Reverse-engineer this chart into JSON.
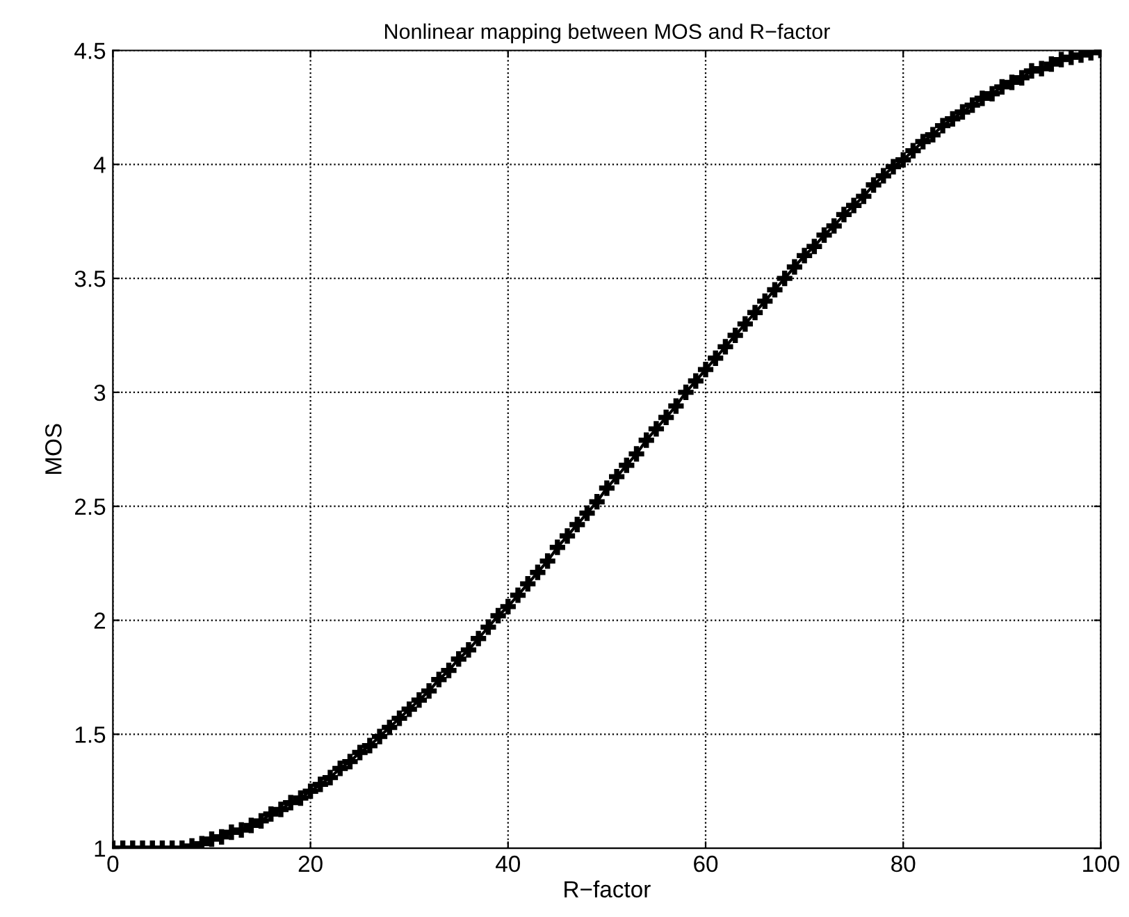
{
  "chart_data": {
    "type": "line",
    "title": "Nonlinear mapping between MOS and R−factor",
    "xlabel": "R−factor",
    "ylabel": "MOS",
    "x": [
      0,
      1,
      2,
      3,
      4,
      5,
      6,
      7,
      8,
      9,
      10,
      11,
      12,
      13,
      14,
      15,
      16,
      17,
      18,
      19,
      20,
      21,
      22,
      23,
      24,
      25,
      26,
      27,
      28,
      29,
      30,
      31,
      32,
      33,
      34,
      35,
      36,
      37,
      38,
      39,
      40,
      41,
      42,
      43,
      44,
      45,
      46,
      47,
      48,
      49,
      50,
      51,
      52,
      53,
      54,
      55,
      56,
      57,
      58,
      59,
      60,
      61,
      62,
      63,
      64,
      65,
      66,
      67,
      68,
      69,
      70,
      71,
      72,
      73,
      74,
      75,
      76,
      77,
      78,
      79,
      80,
      81,
      82,
      83,
      84,
      85,
      86,
      87,
      88,
      89,
      90,
      91,
      92,
      93,
      94,
      95,
      96,
      97,
      98,
      99,
      100
    ],
    "series": [
      {
        "color": "#000000",
        "values": [
          1,
          1,
          1,
          1,
          1,
          1,
          1,
          1.0,
          1.01,
          1.02,
          1.04,
          1.05,
          1.07,
          1.08,
          1.1,
          1.12,
          1.15,
          1.17,
          1.2,
          1.22,
          1.25,
          1.28,
          1.31,
          1.35,
          1.38,
          1.42,
          1.45,
          1.49,
          1.53,
          1.57,
          1.61,
          1.65,
          1.69,
          1.74,
          1.78,
          1.83,
          1.87,
          1.92,
          1.97,
          2.02,
          2.06,
          2.11,
          2.16,
          2.21,
          2.26,
          2.32,
          2.37,
          2.42,
          2.47,
          2.52,
          2.58,
          2.63,
          2.68,
          2.73,
          2.79,
          2.84,
          2.89,
          2.94,
          3.0,
          3.05,
          3.1,
          3.15,
          3.2,
          3.25,
          3.3,
          3.35,
          3.4,
          3.45,
          3.5,
          3.55,
          3.6,
          3.64,
          3.69,
          3.73,
          3.78,
          3.82,
          3.86,
          3.91,
          3.95,
          3.99,
          4.02,
          4.06,
          4.1,
          4.13,
          4.17,
          4.2,
          4.23,
          4.26,
          4.29,
          4.31,
          4.34,
          4.36,
          4.38,
          4.41,
          4.42,
          4.44,
          4.46,
          4.47,
          4.48,
          4.49,
          4.5
        ]
      }
    ],
    "xlim": [
      0,
      100
    ],
    "xticks": [
      0,
      20,
      40,
      60,
      80,
      100
    ],
    "ylim": [
      1,
      4.5
    ],
    "yticks": [
      1,
      1.5,
      2,
      2.5,
      3,
      3.5,
      4,
      4.5
    ],
    "grid": true,
    "marker": "cross",
    "line_style": "solid"
  }
}
